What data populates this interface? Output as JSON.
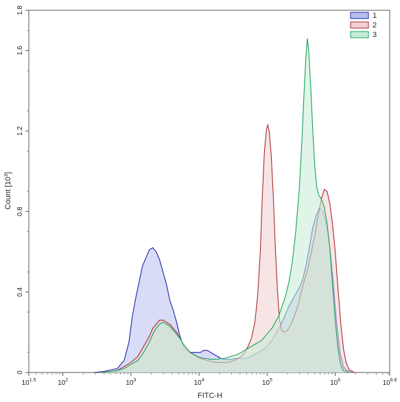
{
  "chart_data": {
    "type": "area",
    "title": "",
    "xlabel": "FITC-H",
    "ylabel": "Count [10^3]",
    "ylabel_parts": {
      "base": "Count [10",
      "exp": "3",
      "close": "]"
    },
    "x_scale": "log10",
    "xlim": [
      1.5,
      6.8
    ],
    "ylim": [
      0,
      1.8
    ],
    "y_ticks": [
      0,
      0.4,
      0.8,
      1.2,
      1.6,
      1.8
    ],
    "y_tick_labels": [
      "0",
      "0.4",
      "0.8",
      "1.2",
      "1.6",
      "1.8"
    ],
    "x_ticks": [
      {
        "value": 1.5,
        "base": "10",
        "exp": "1.5"
      },
      {
        "value": 2,
        "base": "10",
        "exp": "2"
      },
      {
        "value": 3,
        "base": "10",
        "exp": "3"
      },
      {
        "value": 4,
        "base": "10",
        "exp": "4"
      },
      {
        "value": 5,
        "base": "10",
        "exp": "5"
      },
      {
        "value": 6,
        "base": "10",
        "exp": "6"
      },
      {
        "value": 6.8,
        "base": "10",
        "exp": "6.8"
      }
    ],
    "grid": false,
    "legend_position": "top-right",
    "series": [
      {
        "name": "1",
        "stroke": "#1a22a8",
        "fill": "#b8bff0",
        "points": [
          [
            2.45,
            0
          ],
          [
            2.6,
            0.005
          ],
          [
            2.8,
            0.02
          ],
          [
            2.9,
            0.06
          ],
          [
            2.97,
            0.15
          ],
          [
            3.02,
            0.28
          ],
          [
            3.07,
            0.37
          ],
          [
            3.12,
            0.45
          ],
          [
            3.17,
            0.53
          ],
          [
            3.22,
            0.57
          ],
          [
            3.27,
            0.61
          ],
          [
            3.32,
            0.62
          ],
          [
            3.37,
            0.6
          ],
          [
            3.42,
            0.56
          ],
          [
            3.47,
            0.5
          ],
          [
            3.52,
            0.44
          ],
          [
            3.57,
            0.36
          ],
          [
            3.62,
            0.31
          ],
          [
            3.67,
            0.25
          ],
          [
            3.72,
            0.18
          ],
          [
            3.77,
            0.13
          ],
          [
            3.82,
            0.11
          ],
          [
            3.87,
            0.1
          ],
          [
            3.92,
            0.1
          ],
          [
            3.97,
            0.1
          ],
          [
            4.02,
            0.1
          ],
          [
            4.07,
            0.11
          ],
          [
            4.12,
            0.11
          ],
          [
            4.17,
            0.1
          ],
          [
            4.22,
            0.09
          ],
          [
            4.27,
            0.08
          ],
          [
            4.32,
            0.07
          ],
          [
            4.37,
            0.065
          ],
          [
            4.42,
            0.065
          ],
          [
            4.47,
            0.065
          ],
          [
            4.52,
            0.07
          ],
          [
            4.57,
            0.07
          ],
          [
            4.62,
            0.07
          ],
          [
            4.67,
            0.07
          ],
          [
            4.72,
            0.075
          ],
          [
            4.77,
            0.08
          ],
          [
            4.82,
            0.09
          ],
          [
            4.87,
            0.1
          ],
          [
            4.92,
            0.11
          ],
          [
            4.97,
            0.12
          ],
          [
            5.02,
            0.14
          ],
          [
            5.07,
            0.16
          ],
          [
            5.12,
            0.19
          ],
          [
            5.17,
            0.22
          ],
          [
            5.22,
            0.25
          ],
          [
            5.27,
            0.29
          ],
          [
            5.32,
            0.33
          ],
          [
            5.37,
            0.36
          ],
          [
            5.42,
            0.39
          ],
          [
            5.47,
            0.42
          ],
          [
            5.52,
            0.46
          ],
          [
            5.57,
            0.53
          ],
          [
            5.62,
            0.62
          ],
          [
            5.67,
            0.72
          ],
          [
            5.72,
            0.78
          ],
          [
            5.77,
            0.82
          ],
          [
            5.82,
            0.8
          ],
          [
            5.87,
            0.74
          ],
          [
            5.92,
            0.62
          ],
          [
            5.97,
            0.45
          ],
          [
            6.02,
            0.25
          ],
          [
            6.07,
            0.1
          ],
          [
            6.12,
            0.03
          ],
          [
            6.17,
            0.01
          ],
          [
            6.25,
            0
          ]
        ]
      },
      {
        "name": "2",
        "stroke": "#a8282c",
        "fill": "#f0d0d0",
        "points": [
          [
            2.55,
            0
          ],
          [
            2.7,
            0.005
          ],
          [
            2.8,
            0.01
          ],
          [
            2.9,
            0.03
          ],
          [
            3.0,
            0.05
          ],
          [
            3.1,
            0.08
          ],
          [
            3.17,
            0.12
          ],
          [
            3.22,
            0.15
          ],
          [
            3.27,
            0.18
          ],
          [
            3.32,
            0.22
          ],
          [
            3.37,
            0.24
          ],
          [
            3.42,
            0.26
          ],
          [
            3.47,
            0.26
          ],
          [
            3.52,
            0.25
          ],
          [
            3.57,
            0.24
          ],
          [
            3.62,
            0.22
          ],
          [
            3.67,
            0.2
          ],
          [
            3.72,
            0.17
          ],
          [
            3.77,
            0.14
          ],
          [
            3.82,
            0.12
          ],
          [
            3.87,
            0.1
          ],
          [
            3.92,
            0.09
          ],
          [
            3.97,
            0.08
          ],
          [
            4.02,
            0.07
          ],
          [
            4.07,
            0.065
          ],
          [
            4.12,
            0.06
          ],
          [
            4.17,
            0.055
          ],
          [
            4.22,
            0.05
          ],
          [
            4.27,
            0.05
          ],
          [
            4.32,
            0.05
          ],
          [
            4.37,
            0.05
          ],
          [
            4.42,
            0.05
          ],
          [
            4.47,
            0.055
          ],
          [
            4.52,
            0.06
          ],
          [
            4.57,
            0.07
          ],
          [
            4.62,
            0.08
          ],
          [
            4.67,
            0.1
          ],
          [
            4.72,
            0.13
          ],
          [
            4.77,
            0.17
          ],
          [
            4.82,
            0.25
          ],
          [
            4.86,
            0.38
          ],
          [
            4.9,
            0.6
          ],
          [
            4.93,
            0.88
          ],
          [
            4.96,
            1.1
          ],
          [
            4.99,
            1.21
          ],
          [
            5.01,
            1.23
          ],
          [
            5.03,
            1.2
          ],
          [
            5.06,
            1.08
          ],
          [
            5.09,
            0.88
          ],
          [
            5.12,
            0.62
          ],
          [
            5.15,
            0.42
          ],
          [
            5.18,
            0.27
          ],
          [
            5.21,
            0.21
          ],
          [
            5.25,
            0.2
          ],
          [
            5.3,
            0.21
          ],
          [
            5.35,
            0.24
          ],
          [
            5.4,
            0.28
          ],
          [
            5.45,
            0.33
          ],
          [
            5.5,
            0.4
          ],
          [
            5.55,
            0.46
          ],
          [
            5.6,
            0.52
          ],
          [
            5.65,
            0.6
          ],
          [
            5.7,
            0.68
          ],
          [
            5.75,
            0.78
          ],
          [
            5.8,
            0.87
          ],
          [
            5.84,
            0.91
          ],
          [
            5.88,
            0.9
          ],
          [
            5.92,
            0.84
          ],
          [
            5.96,
            0.74
          ],
          [
            6.0,
            0.6
          ],
          [
            6.04,
            0.42
          ],
          [
            6.08,
            0.25
          ],
          [
            6.12,
            0.12
          ],
          [
            6.16,
            0.05
          ],
          [
            6.2,
            0.015
          ],
          [
            6.28,
            0
          ]
        ]
      },
      {
        "name": "3",
        "stroke": "#15a05a",
        "fill": "#c7ecd6",
        "points": [
          [
            2.55,
            0
          ],
          [
            2.7,
            0.005
          ],
          [
            2.8,
            0.01
          ],
          [
            2.9,
            0.02
          ],
          [
            3.0,
            0.04
          ],
          [
            3.1,
            0.06
          ],
          [
            3.17,
            0.09
          ],
          [
            3.22,
            0.12
          ],
          [
            3.27,
            0.15
          ],
          [
            3.32,
            0.19
          ],
          [
            3.37,
            0.22
          ],
          [
            3.42,
            0.24
          ],
          [
            3.47,
            0.25
          ],
          [
            3.52,
            0.24
          ],
          [
            3.57,
            0.23
          ],
          [
            3.62,
            0.21
          ],
          [
            3.67,
            0.19
          ],
          [
            3.72,
            0.17
          ],
          [
            3.77,
            0.14
          ],
          [
            3.82,
            0.12
          ],
          [
            3.87,
            0.1
          ],
          [
            3.92,
            0.09
          ],
          [
            3.97,
            0.08
          ],
          [
            4.02,
            0.075
          ],
          [
            4.07,
            0.07
          ],
          [
            4.12,
            0.07
          ],
          [
            4.17,
            0.065
          ],
          [
            4.22,
            0.065
          ],
          [
            4.27,
            0.065
          ],
          [
            4.32,
            0.07
          ],
          [
            4.37,
            0.07
          ],
          [
            4.42,
            0.075
          ],
          [
            4.47,
            0.08
          ],
          [
            4.52,
            0.085
          ],
          [
            4.57,
            0.09
          ],
          [
            4.62,
            0.1
          ],
          [
            4.67,
            0.11
          ],
          [
            4.72,
            0.12
          ],
          [
            4.77,
            0.13
          ],
          [
            4.82,
            0.14
          ],
          [
            4.87,
            0.15
          ],
          [
            4.92,
            0.16
          ],
          [
            4.97,
            0.18
          ],
          [
            5.02,
            0.2
          ],
          [
            5.07,
            0.22
          ],
          [
            5.12,
            0.25
          ],
          [
            5.17,
            0.28
          ],
          [
            5.22,
            0.33
          ],
          [
            5.27,
            0.38
          ],
          [
            5.32,
            0.45
          ],
          [
            5.37,
            0.55
          ],
          [
            5.42,
            0.7
          ],
          [
            5.47,
            0.9
          ],
          [
            5.51,
            1.15
          ],
          [
            5.54,
            1.38
          ],
          [
            5.57,
            1.57
          ],
          [
            5.59,
            1.66
          ],
          [
            5.61,
            1.6
          ],
          [
            5.64,
            1.42
          ],
          [
            5.67,
            1.2
          ],
          [
            5.7,
            1.02
          ],
          [
            5.73,
            0.92
          ],
          [
            5.76,
            0.88
          ],
          [
            5.8,
            0.86
          ],
          [
            5.84,
            0.82
          ],
          [
            5.88,
            0.74
          ],
          [
            5.92,
            0.62
          ],
          [
            5.96,
            0.44
          ],
          [
            6.0,
            0.26
          ],
          [
            6.04,
            0.12
          ],
          [
            6.08,
            0.04
          ],
          [
            6.12,
            0.01
          ],
          [
            6.2,
            0
          ]
        ]
      }
    ]
  }
}
